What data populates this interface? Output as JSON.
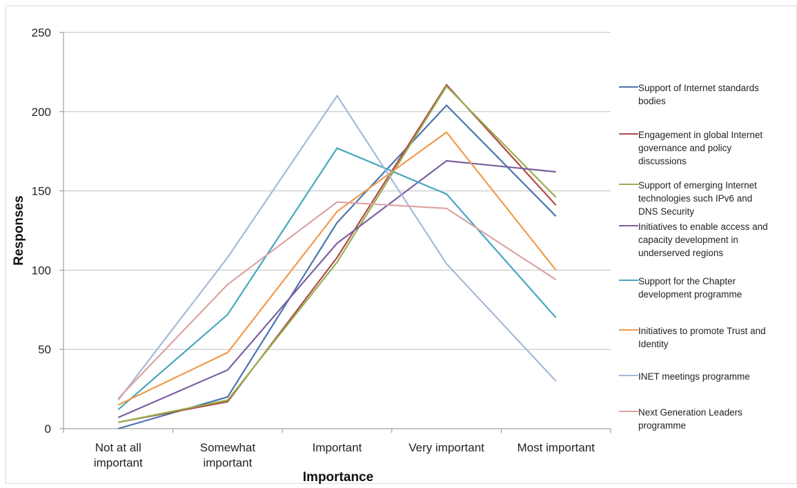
{
  "chart_data": {
    "type": "line",
    "title": "",
    "xlabel": "Importance",
    "ylabel": "Responses",
    "categories": [
      "Not at all important",
      "Somewhat important",
      "Important",
      "Very important",
      "Most important"
    ],
    "category_lines": [
      [
        "Not at all",
        "important"
      ],
      [
        "Somewhat",
        "important"
      ],
      [
        "Important"
      ],
      [
        "Very important"
      ],
      [
        "Most important"
      ]
    ],
    "ylim": [
      0,
      250
    ],
    "yticks": [
      0,
      50,
      100,
      150,
      200,
      250
    ],
    "grid": true,
    "legend_position": "right",
    "series": [
      {
        "name": "Support of Internet standards bodies",
        "name_lines": [
          "Support of Internet standards",
          "bodies"
        ],
        "color": "#4a73b0",
        "values": [
          0,
          20,
          130,
          204,
          134
        ]
      },
      {
        "name": "Engagement in global Internet governance and policy discussions",
        "name_lines": [
          "Engagement in global Internet",
          "governance and policy",
          "discussions"
        ],
        "color": "#b04a45",
        "values": [
          4,
          17,
          108,
          217,
          141
        ]
      },
      {
        "name": "Support of emerging Internet technologies such IPv6 and DNS Security",
        "name_lines": [
          "Support of emerging Internet",
          "technologies such IPv6 and",
          "DNS Security"
        ],
        "color": "#96b04e",
        "values": [
          4,
          18,
          105,
          216,
          146
        ]
      },
      {
        "name": "Initiatives to enable access and capacity development in underserved regions",
        "name_lines": [
          "Initiatives to enable access and",
          "capacity development in",
          "underserved regions"
        ],
        "color": "#7a5fa1",
        "values": [
          7,
          37,
          117,
          169,
          162
        ]
      },
      {
        "name": "Support for the Chapter development programme",
        "name_lines": [
          "Support for the Chapter",
          "development programme"
        ],
        "color": "#44a6bf",
        "values": [
          12,
          72,
          177,
          148,
          70
        ]
      },
      {
        "name": "Initiatives to promote Trust and Identity",
        "name_lines": [
          "Initiatives to promote Trust and",
          "Identity"
        ],
        "color": "#ef9a4a",
        "values": [
          15,
          48,
          137,
          187,
          100
        ]
      },
      {
        "name": "INET meetings programme",
        "name_lines": [
          "INET meetings programme"
        ],
        "color": "#a5b8d8",
        "values": [
          18,
          108,
          210,
          104,
          30
        ]
      },
      {
        "name": "Next Generation Leaders programme",
        "name_lines": [
          "Next Generation Leaders",
          "programme"
        ],
        "color": "#dba3a1",
        "values": [
          19,
          91,
          143,
          139,
          94
        ]
      }
    ]
  }
}
